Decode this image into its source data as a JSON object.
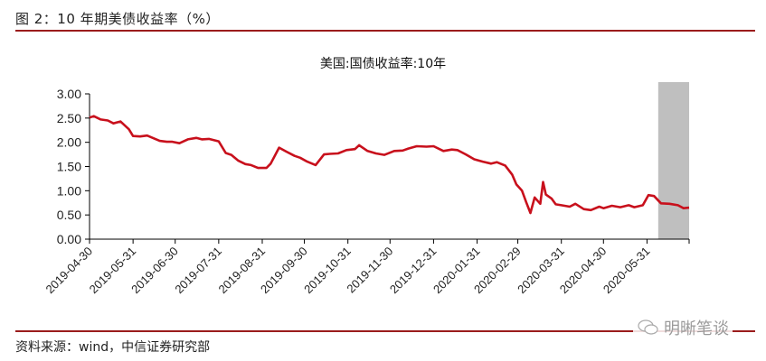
{
  "figure": {
    "title": "图 2：10 年期美债收益率（%）",
    "source": "资料来源：wind，中信证券研究部",
    "watermark": "明晰笔谈"
  },
  "colors": {
    "rule": "#9b1c1c",
    "line": "#c8101c",
    "shade": "#bfbfbf",
    "axis": "#000000"
  },
  "chart_data": {
    "type": "line",
    "title": "美国:国债收益率:10年",
    "xlabel": "",
    "ylabel": "",
    "ylim": [
      0,
      3
    ],
    "yticks": [
      "0.00",
      "0.50",
      "1.00",
      "1.50",
      "2.00",
      "2.50",
      "3.00"
    ],
    "categories": [
      "2019-04-30",
      "2019-05-31",
      "2019-06-30",
      "2019-07-31",
      "2019-08-31",
      "2019-09-30",
      "2019-10-31",
      "2019-11-30",
      "2019-12-31",
      "2020-01-31",
      "2020-02-29",
      "2020-03-31",
      "2020-04-30",
      "2020-05-31"
    ],
    "grid": false,
    "legend": null,
    "shaded_region": {
      "from": "2020-06-08",
      "to": "2020-06-30",
      "color": "#bfbfbf"
    },
    "series": [
      {
        "name": "美国:国债收益率:10年",
        "x": [
          "2019-04-30",
          "2019-05-03",
          "2019-05-08",
          "2019-05-13",
          "2019-05-17",
          "2019-05-22",
          "2019-05-28",
          "2019-05-31",
          "2019-06-05",
          "2019-06-10",
          "2019-06-14",
          "2019-06-19",
          "2019-06-24",
          "2019-06-28",
          "2019-07-03",
          "2019-07-09",
          "2019-07-15",
          "2019-07-19",
          "2019-07-24",
          "2019-07-31",
          "2019-08-05",
          "2019-08-09",
          "2019-08-14",
          "2019-08-19",
          "2019-08-23",
          "2019-08-28",
          "2019-09-03",
          "2019-09-06",
          "2019-09-12",
          "2019-09-17",
          "2019-09-23",
          "2019-09-27",
          "2019-10-02",
          "2019-10-08",
          "2019-10-14",
          "2019-10-18",
          "2019-10-24",
          "2019-10-30",
          "2019-11-05",
          "2019-11-08",
          "2019-11-14",
          "2019-11-20",
          "2019-11-26",
          "2019-12-03",
          "2019-12-09",
          "2019-12-13",
          "2019-12-19",
          "2019-12-26",
          "2019-12-31",
          "2020-01-07",
          "2020-01-13",
          "2020-01-17",
          "2020-01-23",
          "2020-01-29",
          "2020-02-04",
          "2020-02-10",
          "2020-02-14",
          "2020-02-20",
          "2020-02-25",
          "2020-02-28",
          "2020-03-03",
          "2020-03-06",
          "2020-03-09",
          "2020-03-12",
          "2020-03-16",
          "2020-03-18",
          "2020-03-20",
          "2020-03-24",
          "2020-03-27",
          "2020-03-31",
          "2020-04-06",
          "2020-04-10",
          "2020-04-16",
          "2020-04-21",
          "2020-04-27",
          "2020-04-30",
          "2020-05-06",
          "2020-05-12",
          "2020-05-18",
          "2020-05-22",
          "2020-05-28",
          "2020-06-01",
          "2020-06-05",
          "2020-06-10",
          "2020-06-16",
          "2020-06-22",
          "2020-06-26",
          "2020-06-30"
        ],
        "values": [
          2.51,
          2.54,
          2.47,
          2.45,
          2.39,
          2.43,
          2.27,
          2.13,
          2.12,
          2.14,
          2.09,
          2.03,
          2.01,
          2.01,
          1.98,
          2.06,
          2.09,
          2.06,
          2.07,
          2.02,
          1.78,
          1.74,
          1.62,
          1.55,
          1.53,
          1.47,
          1.47,
          1.56,
          1.89,
          1.81,
          1.72,
          1.68,
          1.6,
          1.53,
          1.75,
          1.76,
          1.77,
          1.84,
          1.86,
          1.94,
          1.82,
          1.77,
          1.74,
          1.82,
          1.83,
          1.87,
          1.92,
          1.91,
          1.92,
          1.82,
          1.85,
          1.84,
          1.75,
          1.65,
          1.6,
          1.56,
          1.59,
          1.52,
          1.33,
          1.13,
          1.0,
          0.76,
          0.54,
          0.86,
          0.73,
          1.18,
          0.92,
          0.84,
          0.72,
          0.7,
          0.67,
          0.73,
          0.62,
          0.6,
          0.67,
          0.64,
          0.69,
          0.66,
          0.7,
          0.66,
          0.7,
          0.91,
          0.89,
          0.74,
          0.73,
          0.7,
          0.64,
          0.65
        ]
      }
    ]
  }
}
